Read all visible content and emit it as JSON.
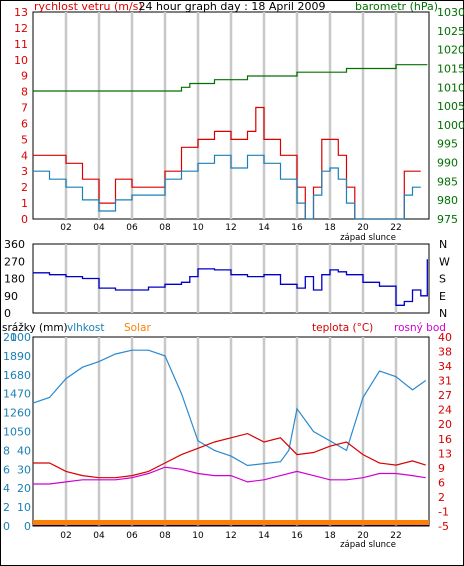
{
  "chart_data": [
    {
      "panel": "wind_speed_and_pressure",
      "type": "line",
      "title": "24 hour graph day : 18 April 2009",
      "left_axis_label": "rychlost vetru (m/s)",
      "right_axis_label": "barometr (hPa)",
      "left_ticks": [
        "0",
        "1",
        "2",
        "3",
        "4",
        "5",
        "6",
        "7",
        "8",
        "9",
        "10",
        "11",
        "12",
        "13"
      ],
      "right_ticks": [
        "975",
        "980",
        "985",
        "990",
        "995",
        "1000",
        "1005",
        "1010",
        "1015",
        "1020",
        "1025",
        "1030"
      ],
      "x_ticks": [
        "02",
        "04",
        "06",
        "08",
        "10",
        "12",
        "14",
        "16",
        "18",
        "20",
        "22"
      ],
      "x_annotation": "západ slunce",
      "ylim_left": [
        0,
        13
      ],
      "ylim_right": [
        975,
        1030
      ],
      "xlim_hours": [
        0,
        24
      ],
      "grid": "vertical",
      "series": [
        {
          "name": "rychlost vetru (m/s)",
          "color": "#dd0000",
          "axis": "left",
          "x": [
            0,
            1,
            2,
            3,
            4,
            5,
            6,
            7,
            8,
            9,
            10,
            11,
            12,
            13,
            13.5,
            14,
            15,
            16,
            16.5,
            17,
            17.5,
            18,
            18.5,
            19,
            19.5,
            20,
            21,
            22,
            22.5,
            23,
            23.5
          ],
          "values": [
            4,
            4,
            3.5,
            2.5,
            1,
            2.5,
            2,
            2,
            3,
            4.5,
            5,
            5.5,
            5,
            5.5,
            7,
            5,
            4,
            2,
            0,
            2,
            5,
            5,
            4,
            2,
            0,
            0,
            0,
            0,
            3,
            3,
            3
          ]
        },
        {
          "name": "wind speed (blue trace)",
          "color": "#1a80b6",
          "axis": "left",
          "x": [
            0,
            1,
            2,
            3,
            4,
            5,
            6,
            7,
            8,
            9,
            10,
            11,
            12,
            13,
            14,
            15,
            16,
            16.5,
            17,
            17.5,
            18,
            18.5,
            19,
            19.5,
            20,
            21,
            22,
            22.5,
            23,
            23.5
          ],
          "values": [
            3,
            2.5,
            2,
            1.2,
            0.5,
            1.2,
            1.5,
            1.5,
            2.5,
            3,
            3.5,
            4,
            3.2,
            4,
            3.5,
            2.5,
            1,
            0,
            1.5,
            3,
            3.2,
            2.5,
            1,
            0,
            0,
            0,
            0,
            1.5,
            2,
            2
          ]
        },
        {
          "name": "barometr (hPa)",
          "color": "#007000",
          "axis": "right",
          "x": [
            0,
            1,
            2,
            3,
            4,
            5,
            6,
            7,
            8,
            9,
            9.5,
            10,
            11,
            12,
            13,
            14,
            15,
            16,
            17,
            18,
            19,
            20,
            21,
            22,
            23,
            23.9
          ],
          "values": [
            1009,
            1009,
            1009,
            1009,
            1009,
            1009,
            1009,
            1009,
            1009,
            1010,
            1011,
            1011,
            1012,
            1012,
            1013,
            1013,
            1013,
            1014,
            1014,
            1014,
            1015,
            1015,
            1015,
            1016,
            1016,
            1016
          ]
        }
      ]
    },
    {
      "panel": "wind_direction",
      "type": "line",
      "left_ticks": [
        "0",
        "90",
        "180",
        "270",
        "360"
      ],
      "right_ticks": [
        "N",
        "E",
        "S",
        "W",
        "N"
      ],
      "ylim": [
        0,
        360
      ],
      "series": [
        {
          "name": "wind direction",
          "color": "#0000c8",
          "x": [
            0,
            1,
            2,
            3,
            4,
            5,
            6,
            7,
            8,
            9,
            9.5,
            10,
            11,
            12,
            13,
            14,
            15,
            16,
            16.5,
            17,
            17.5,
            18,
            18.5,
            19,
            20,
            21,
            22,
            22.5,
            23,
            23.5,
            23.9
          ],
          "values": [
            210,
            200,
            190,
            180,
            130,
            120,
            120,
            135,
            150,
            160,
            190,
            230,
            225,
            200,
            190,
            200,
            150,
            130,
            190,
            120,
            200,
            225,
            215,
            200,
            160,
            140,
            40,
            60,
            120,
            90,
            280
          ]
        }
      ]
    },
    {
      "panel": "humidity_temperature_rain",
      "type": "line",
      "legend_left": [
        "srážky (mm)",
        "vlhkost",
        "Solar"
      ],
      "legend_right": [
        "teplota (°C)",
        "rosný bod"
      ],
      "left_ticks_rain": [
        "0",
        "2",
        "4",
        "6",
        "8",
        "10",
        "12",
        "14",
        "16",
        "18",
        "20"
      ],
      "left_ticks_humidity": [
        "0",
        "10",
        "20",
        "30",
        "40",
        "50",
        "60",
        "70",
        "80",
        "90",
        "100"
      ],
      "right_ticks": [
        "-5",
        "-1",
        "2",
        "6",
        "9",
        "13",
        "16",
        "20",
        "24",
        "27",
        "31",
        "34",
        "38",
        "40"
      ],
      "x_ticks": [
        "02",
        "04",
        "06",
        "08",
        "10",
        "12",
        "14",
        "16",
        "18",
        "20",
        "22"
      ],
      "x_annotation": "západ slunce",
      "ylim_humidity": [
        0,
        100
      ],
      "ylim_temperature": [
        -5,
        40
      ],
      "series": [
        {
          "name": "vlhkost",
          "color": "#2a8ad0",
          "axis": "humidity",
          "x": [
            0,
            1,
            2,
            3,
            4,
            5,
            6,
            7,
            8,
            9,
            10,
            11,
            12,
            13,
            14,
            15,
            15.5,
            16,
            17,
            18,
            19,
            20,
            21,
            22,
            23,
            23.8
          ],
          "values": [
            65,
            68,
            78,
            84,
            87,
            91,
            93,
            93,
            90,
            70,
            45,
            40,
            37,
            32,
            33,
            34,
            40,
            62,
            50,
            45,
            40,
            68,
            82,
            79,
            72,
            77
          ]
        },
        {
          "name": "teplota (°C)",
          "color": "#d80000",
          "axis": "temperature",
          "x": [
            0,
            1,
            2,
            3,
            4,
            5,
            6,
            7,
            8,
            9,
            10,
            11,
            12,
            13,
            14,
            15,
            16,
            17,
            18,
            19,
            20,
            21,
            22,
            23,
            23.8
          ],
          "values": [
            10,
            10,
            8,
            7,
            6.5,
            6.5,
            7,
            8,
            10,
            12,
            13.5,
            15,
            16,
            17,
            15,
            16,
            12,
            12.5,
            14,
            15,
            12,
            10,
            9.5,
            10.5,
            9.5
          ]
        },
        {
          "name": "rosný bod",
          "color": "#d000d0",
          "axis": "temperature",
          "x": [
            0,
            1,
            2,
            3,
            4,
            5,
            6,
            7,
            8,
            9,
            10,
            11,
            12,
            13,
            14,
            15,
            16,
            17,
            18,
            19,
            20,
            21,
            22,
            23,
            23.8
          ],
          "values": [
            5,
            5,
            5.5,
            6,
            6,
            6,
            6.5,
            7.5,
            9,
            8.5,
            7.5,
            7,
            7,
            5.5,
            6,
            7,
            8,
            7,
            6,
            6,
            6.5,
            7.5,
            7.5,
            7,
            6.5
          ]
        },
        {
          "name": "srážky (mm)",
          "color": "#0000aa",
          "axis": "rain",
          "x": [
            0,
            24
          ],
          "values": [
            0,
            0
          ]
        },
        {
          "name": "Solar",
          "color": "#ff8000",
          "axis": "solar",
          "x": [
            0,
            24
          ],
          "values": [
            0,
            0
          ]
        }
      ]
    }
  ]
}
